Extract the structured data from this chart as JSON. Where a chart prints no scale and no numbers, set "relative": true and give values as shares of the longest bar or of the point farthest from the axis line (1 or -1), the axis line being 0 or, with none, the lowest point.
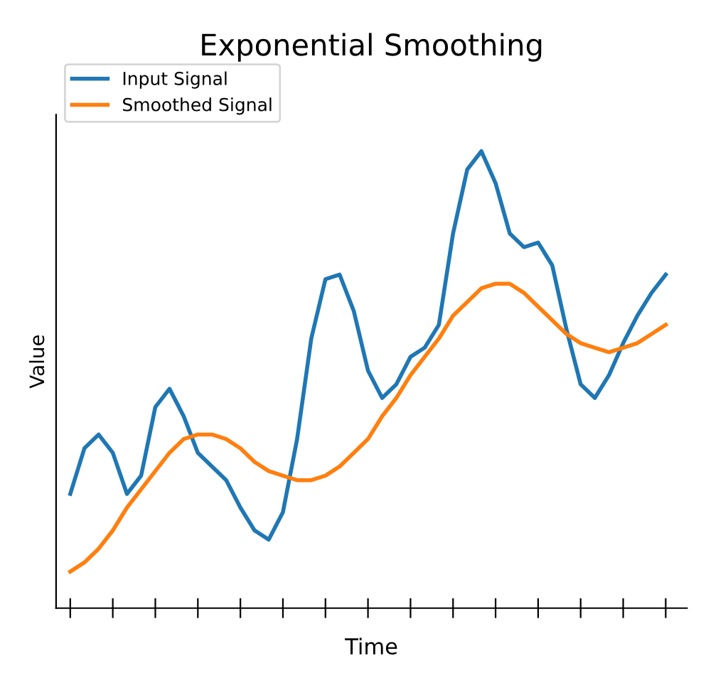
{
  "chart_data": {
    "type": "line",
    "title": "Exponential Smoothing",
    "xlabel": "Time",
    "ylabel": "Value",
    "relative": true,
    "tick_labels": false,
    "legend": "top left",
    "grid": false,
    "categories": [
      null,
      null,
      null,
      null,
      null,
      null,
      null,
      null,
      null,
      null,
      null,
      null,
      null,
      null,
      null,
      null,
      null,
      null,
      null,
      null,
      null,
      null,
      null,
      null,
      null,
      null,
      null,
      null,
      null,
      null,
      null,
      null,
      null,
      null,
      null,
      null,
      null,
      null,
      null,
      null,
      null,
      null,
      null
    ],
    "series": [
      {
        "name": "Input Signal",
        "color": "#1f77b4",
        "values": [
          0.25,
          0.35,
          0.38,
          0.34,
          0.25,
          0.29,
          0.44,
          0.48,
          0.42,
          0.34,
          0.31,
          0.28,
          0.22,
          0.17,
          0.15,
          0.21,
          0.37,
          0.59,
          0.72,
          0.73,
          0.65,
          0.52,
          0.46,
          0.49,
          0.55,
          0.57,
          0.62,
          0.82,
          0.96,
          1,
          0.93,
          0.82,
          0.79,
          0.8,
          0.75,
          0.61,
          0.49,
          0.46,
          0.51,
          0.58,
          0.64,
          0.69,
          0.73
        ]
      },
      {
        "name": "Smoothed Signal",
        "color": "#ff7f0e",
        "values": [
          0.08,
          0.1,
          0.13,
          0.17,
          0.22,
          0.26,
          0.3,
          0.34,
          0.37,
          0.38,
          0.38,
          0.37,
          0.35,
          0.32,
          0.3,
          0.29,
          0.28,
          0.28,
          0.29,
          0.31,
          0.34,
          0.37,
          0.42,
          0.46,
          0.51,
          0.55,
          0.59,
          0.64,
          0.67,
          0.7,
          0.71,
          0.71,
          0.69,
          0.66,
          0.63,
          0.6,
          0.58,
          0.57,
          0.56,
          0.57,
          0.58,
          0.6,
          0.62
        ]
      }
    ]
  }
}
